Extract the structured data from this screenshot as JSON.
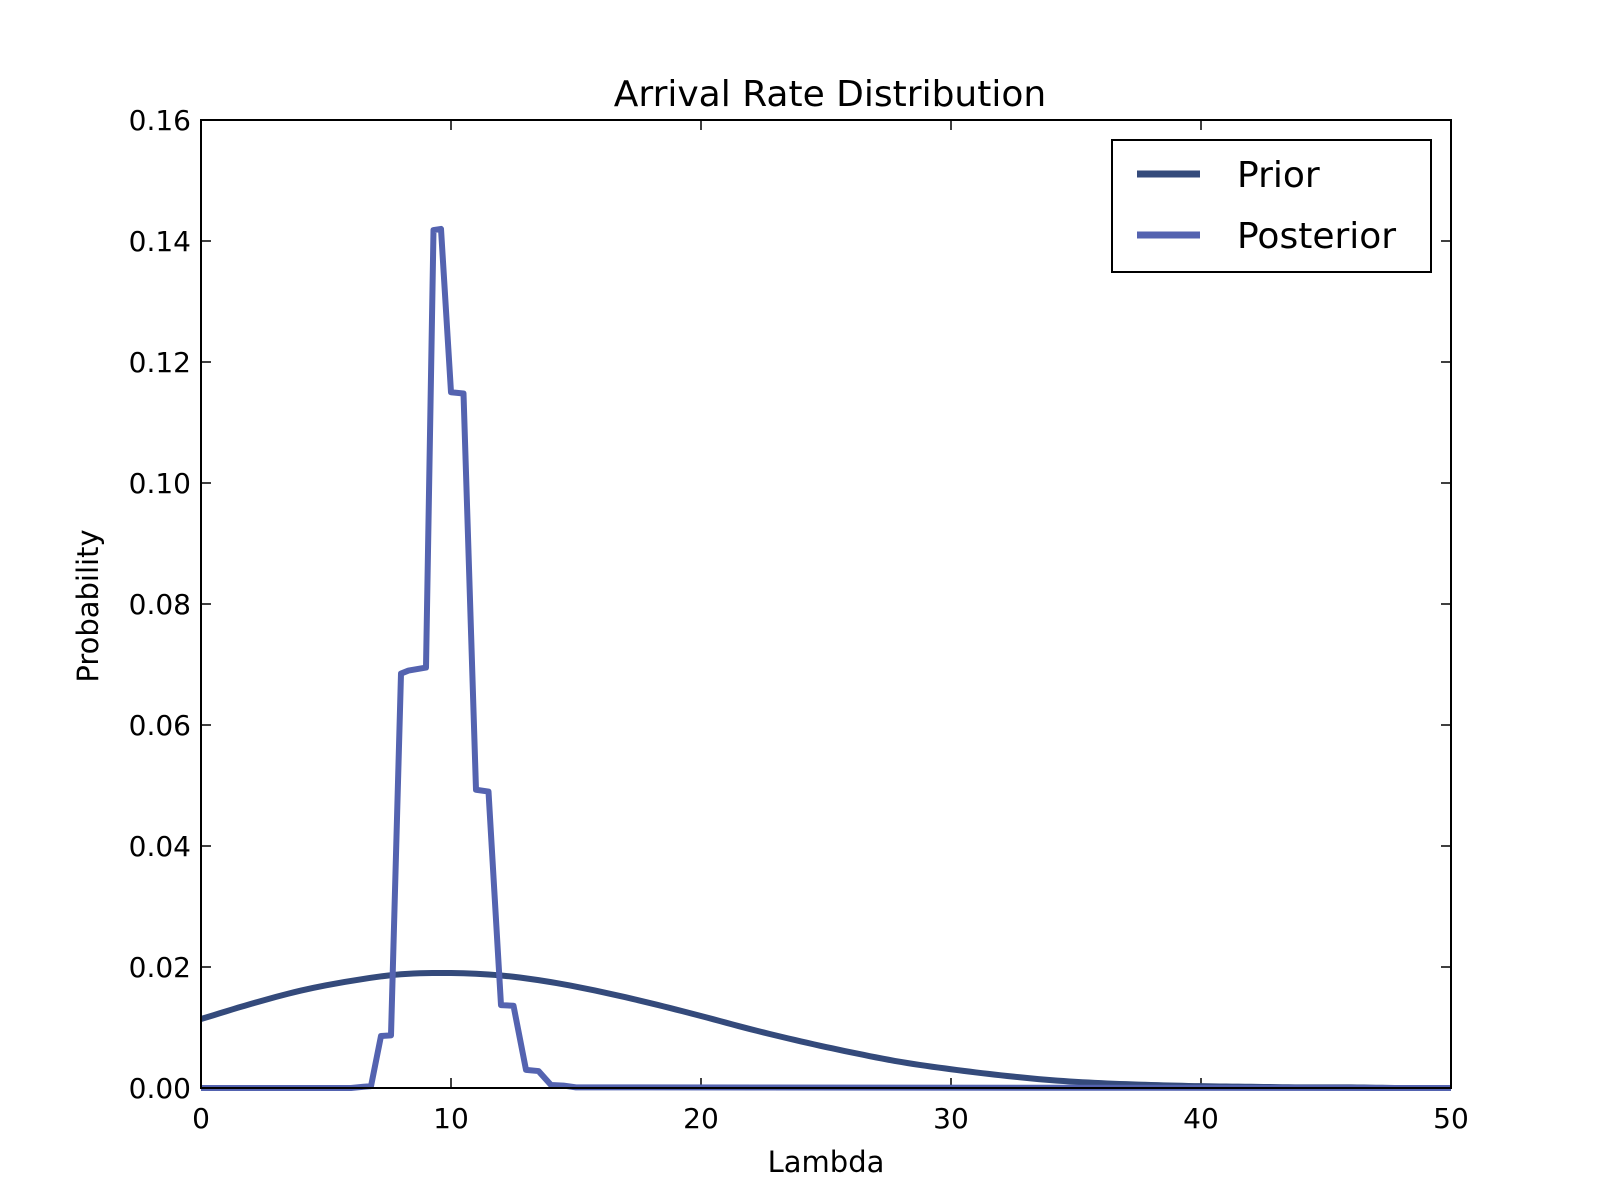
{
  "chart_data": {
    "type": "line",
    "title": "Arrival Rate Distribution",
    "xlabel": "Lambda",
    "ylabel": "Probability",
    "xlim": [
      0,
      50
    ],
    "ylim": [
      0,
      0.16
    ],
    "xticks": [
      "0",
      "10",
      "20",
      "30",
      "40",
      "50"
    ],
    "yticks": [
      "0.00",
      "0.02",
      "0.04",
      "0.06",
      "0.08",
      "0.10",
      "0.12",
      "0.14",
      "0.16"
    ],
    "grid": false,
    "legend_position": "top-right",
    "series": [
      {
        "name": "Prior",
        "color": "#344a7b",
        "x": [
          0,
          2,
          4,
          6,
          8,
          10,
          12,
          14,
          16,
          18,
          20,
          22,
          24,
          26,
          28,
          30,
          32,
          34,
          36,
          38,
          40,
          42,
          44,
          46,
          48,
          50
        ],
        "y": [
          0.0114,
          0.0139,
          0.0161,
          0.0177,
          0.0188,
          0.019,
          0.0186,
          0.0175,
          0.0159,
          0.014,
          0.0119,
          0.0097,
          0.0077,
          0.0059,
          0.0043,
          0.0031,
          0.0021,
          0.0013,
          0.0008,
          0.0005,
          0.0003,
          0.0002,
          0.0001,
          0.0001,
          0.0,
          0.0
        ]
      },
      {
        "name": "Posterior",
        "color": "#5463b0",
        "x": [
          0,
          6.0,
          6.5,
          6.8,
          7.2,
          7.6,
          8.0,
          8.3,
          9.0,
          9.3,
          9.6,
          10.0,
          10.5,
          11.0,
          11.5,
          12.0,
          12.5,
          13.0,
          13.5,
          14.0,
          14.5,
          15.0,
          50
        ],
        "y": [
          0.0,
          0.0,
          0.0002,
          0.0003,
          0.0086,
          0.0087,
          0.0685,
          0.069,
          0.0695,
          0.1418,
          0.142,
          0.115,
          0.1148,
          0.0493,
          0.049,
          0.0137,
          0.0136,
          0.003,
          0.0028,
          0.0005,
          0.0004,
          0.0001,
          0.0
        ]
      }
    ]
  }
}
